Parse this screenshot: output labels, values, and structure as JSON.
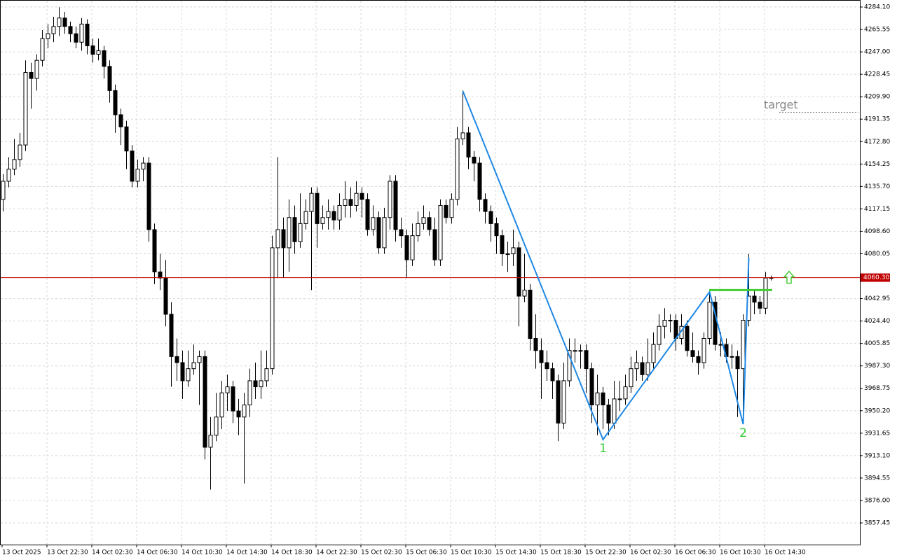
{
  "chart_data": {
    "type": "candlestick",
    "categories": [
      "13 Oct 2025",
      null,
      null,
      null,
      null,
      null,
      null,
      null,
      "13 Oct 22:30",
      null,
      null,
      null,
      null,
      null,
      null,
      null,
      "14 Oct 02:30",
      null,
      null,
      null,
      null,
      null,
      null,
      null,
      "14 Oct 06:30",
      null,
      null,
      null,
      null,
      null,
      null,
      null,
      "14 Oct 10:30",
      null,
      null,
      null,
      null,
      null,
      null,
      null,
      "14 Oct 14:30",
      null,
      null,
      null,
      null,
      null,
      null,
      null,
      "14 Oct 18:30",
      null,
      null,
      null,
      null,
      null,
      null,
      null,
      "14 Oct 22:30",
      null,
      null,
      null,
      null,
      null,
      null,
      null,
      "15 Oct 02:30",
      null,
      null,
      null,
      null,
      null,
      null,
      null,
      "15 Oct 06:30",
      null,
      null,
      null,
      null,
      null,
      null,
      null,
      "15 Oct 10:30",
      null,
      null,
      null,
      null,
      null,
      null,
      null,
      "15 Oct 14:30",
      null,
      null,
      null,
      null,
      null,
      null,
      null,
      "15 Oct 18:30",
      null,
      null,
      null,
      null,
      null,
      null,
      null,
      "15 Oct 22:30",
      null,
      null,
      null,
      null,
      null,
      null,
      null,
      "16 Oct 02:30",
      null,
      null,
      null,
      null,
      null,
      null,
      null,
      "16 Oct 06:30",
      null,
      null,
      null,
      null,
      null,
      null,
      null,
      "16 Oct 10:30",
      null,
      null,
      null,
      null,
      null,
      null,
      null,
      "16 Oct 14:30",
      null
    ],
    "open": [
      4125,
      4140,
      4150,
      4158,
      4170,
      4230,
      4225,
      4240,
      4258,
      4262,
      4268,
      4275,
      4268,
      4262,
      4255,
      4270,
      4252,
      4245,
      4248,
      4235,
      4215,
      4195,
      4185,
      4165,
      4140,
      4150,
      4155,
      4100,
      4065,
      4060,
      4030,
      3995,
      3990,
      3975,
      3985,
      3990,
      3995,
      3920,
      3930,
      3945,
      3965,
      3970,
      3950,
      3945,
      3955,
      3975,
      3970,
      3975,
      3985,
      4085,
      4100,
      4085,
      4110,
      4090,
      4105,
      4115,
      4130,
      4105,
      4110,
      4115,
      4108,
      4120,
      4125,
      4120,
      4130,
      4125,
      4100,
      4110,
      4085,
      4110,
      4140,
      4100,
      4095,
      4075,
      4095,
      4105,
      4110,
      4100,
      4075,
      4120,
      4110,
      4125,
      4175,
      4180,
      4160,
      4155,
      4125,
      4115,
      4105,
      4095,
      4080,
      4080,
      4085,
      4045,
      4050,
      4010,
      4000,
      3990,
      3985,
      3975,
      3940,
      3975,
      4000,
      4000,
      4000,
      3985,
      3955,
      3965,
      3955,
      3940,
      3960,
      3960,
      3970,
      3985,
      3990,
      3980,
      3990,
      4005,
      4020,
      4025,
      4025,
      4010,
      4020,
      4000,
      3995,
      3990,
      4010,
      4040,
      4005,
      4005,
      3995,
      3995,
      3985,
      4025,
      4045,
      4040,
      4035,
      4060
    ],
    "high": [
      4146,
      4160,
      4175,
      4180,
      4240,
      4238,
      4245,
      4265,
      4270,
      4276,
      4284,
      4280,
      4272,
      4268,
      4275,
      4274,
      4258,
      4258,
      4252,
      4240,
      4220,
      4200,
      4190,
      4170,
      4158,
      4160,
      4160,
      4105,
      4080,
      4075,
      4040,
      4010,
      4000,
      4000,
      4005,
      4000,
      4000,
      3945,
      3965,
      3975,
      3980,
      3975,
      3960,
      3965,
      3985,
      3990,
      4000,
      4000,
      4095,
      4160,
      4110,
      4125,
      4120,
      4130,
      4125,
      4135,
      4135,
      4120,
      4125,
      4120,
      4130,
      4140,
      4135,
      4140,
      4135,
      4130,
      4120,
      4115,
      4118,
      4145,
      4145,
      4110,
      4100,
      4105,
      4115,
      4120,
      4115,
      4110,
      4125,
      4125,
      4130,
      4185,
      4215,
      4185,
      4165,
      4160,
      4130,
      4120,
      4110,
      4100,
      4090,
      4100,
      4090,
      4080,
      4055,
      4030,
      4010,
      4000,
      3990,
      3980,
      3990,
      4010,
      4010,
      4005,
      4005,
      3990,
      3980,
      3970,
      3960,
      3975,
      3975,
      3980,
      3995,
      4000,
      3995,
      4010,
      4015,
      4030,
      4035,
      4030,
      4030,
      4030,
      4025,
      4015,
      4000,
      4015,
      4048,
      4045,
      4015,
      4010,
      4005,
      4000,
      4030,
      4080,
      4050,
      4045,
      4065,
      4062
    ],
    "low": [
      4115,
      4135,
      4145,
      4152,
      4165,
      4200,
      4215,
      4235,
      4250,
      4255,
      4260,
      4262,
      4255,
      4250,
      4248,
      4245,
      4238,
      4240,
      4225,
      4205,
      4180,
      4170,
      4150,
      4135,
      4135,
      4140,
      4090,
      4055,
      4050,
      4020,
      3970,
      3975,
      3960,
      3970,
      3980,
      3955,
      3910,
      3885,
      3925,
      3935,
      3950,
      3940,
      3930,
      3890,
      3945,
      3960,
      3960,
      3970,
      3980,
      4060,
      4060,
      4065,
      4080,
      4085,
      4100,
      4050,
      4085,
      4100,
      4100,
      4100,
      4100,
      4110,
      4110,
      4115,
      4110,
      4095,
      4095,
      4080,
      4080,
      4100,
      4090,
      4085,
      4060,
      4070,
      4090,
      4100,
      4095,
      4070,
      4070,
      4105,
      4105,
      4120,
      4170,
      4150,
      4140,
      4115,
      4105,
      4090,
      4080,
      4070,
      4065,
      4070,
      4020,
      4040,
      4000,
      3985,
      3960,
      3975,
      3960,
      3925,
      3935,
      3970,
      3990,
      3985,
      3965,
      3940,
      3930,
      3935,
      3930,
      3935,
      3950,
      3955,
      3965,
      3975,
      3975,
      3975,
      3985,
      4000,
      4010,
      4015,
      4000,
      4005,
      3995,
      3990,
      3980,
      3985,
      4005,
      4000,
      3995,
      3990,
      3985,
      3945,
      3940,
      4020,
      4030,
      4030,
      4030,
      4058
    ],
    "close": [
      4140,
      4150,
      4158,
      4170,
      4230,
      4225,
      4240,
      4258,
      4262,
      4268,
      4275,
      4268,
      4262,
      4255,
      4270,
      4252,
      4245,
      4248,
      4235,
      4215,
      4195,
      4185,
      4165,
      4140,
      4150,
      4155,
      4100,
      4065,
      4060,
      4030,
      3995,
      3990,
      3975,
      3985,
      3990,
      3995,
      3920,
      3930,
      3945,
      3965,
      3970,
      3950,
      3945,
      3955,
      3975,
      3970,
      3975,
      3985,
      4085,
      4100,
      4085,
      4110,
      4090,
      4105,
      4115,
      4130,
      4105,
      4110,
      4115,
      4108,
      4120,
      4125,
      4120,
      4130,
      4125,
      4100,
      4110,
      4085,
      4110,
      4140,
      4100,
      4095,
      4075,
      4095,
      4105,
      4110,
      4100,
      4075,
      4120,
      4110,
      4125,
      4175,
      4180,
      4160,
      4155,
      4125,
      4115,
      4105,
      4095,
      4080,
      4080,
      4085,
      4045,
      4050,
      4010,
      4000,
      3990,
      3985,
      3975,
      3940,
      3975,
      4000,
      4000,
      4000,
      3985,
      3955,
      3965,
      3955,
      3940,
      3960,
      3960,
      3970,
      3985,
      3990,
      3980,
      3990,
      4005,
      4020,
      4025,
      4025,
      4010,
      4020,
      4000,
      3995,
      3990,
      4010,
      4040,
      4005,
      4005,
      3995,
      3995,
      3985,
      4025,
      4045,
      4040,
      4035,
      4060,
      4060.3
    ],
    "ylim": [
      3839.5,
      4289.9
    ],
    "yticks": [
      {
        "value": 4284.1,
        "label": "4284.10"
      },
      4265.55,
      {
        "value": 4247,
        "label": "4247.00"
      },
      4228.45,
      {
        "value": 4209.9,
        "label": "4209.90"
      },
      4191.35,
      {
        "value": 4172.8,
        "label": "4172.80"
      },
      4154.25,
      {
        "value": 4135.7,
        "label": "4135.70"
      },
      4117.15,
      {
        "value": 4098.6,
        "label": "4098.60"
      },
      4080.05,
      4042.95,
      {
        "value": 4024.4,
        "label": "4024.40"
      },
      4005.85,
      {
        "value": 3987.3,
        "label": "3987.30"
      },
      3968.75,
      {
        "value": 3950.2,
        "label": "3950.20"
      },
      3931.65,
      {
        "value": 3913.1,
        "label": "3913.10"
      },
      3894.55,
      {
        "value": 3876,
        "label": "3876.00"
      },
      3857.45
    ],
    "grid": true,
    "last_price": {
      "value": 4060.3,
      "label": "4060.30",
      "color": "#c00000"
    },
    "pattern": {
      "color": "#1e88e5",
      "x": [
        82,
        107,
        126,
        132,
        133
      ],
      "prices": [
        4214.6,
        3926.4,
        4048.5,
        3939.1,
        4076.9
      ],
      "point_labels": [
        {
          "x": 107,
          "price": 3926.4,
          "label": "1"
        },
        {
          "x": 132,
          "price": 3939.1,
          "label": "2"
        }
      ]
    },
    "level": {
      "price": 4050,
      "x": [
        126,
        137
      ],
      "color": "#44cc33"
    },
    "target": {
      "label": "target",
      "price": 4197
    }
  }
}
